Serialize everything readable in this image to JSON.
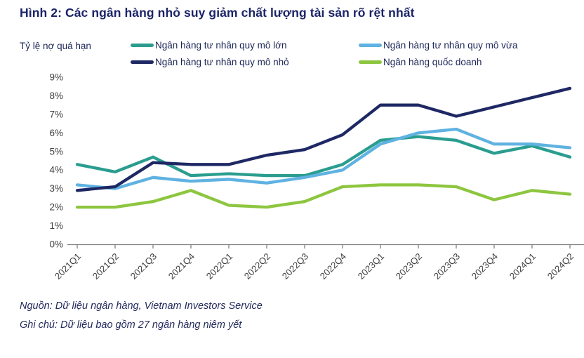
{
  "title": "Hình 2: Các ngân hàng nhỏ suy giảm chất lượng tài sản rõ rệt nhất",
  "y_axis_label": "Tỷ lệ nợ quá hạn",
  "footer": {
    "source": "Nguồn: Dữ liệu ngân hàng, Vietnam Investors Service",
    "note": "Ghi chú: Dữ liệu bao gồm 27 ngân hàng niêm yết"
  },
  "colors": {
    "title_navy": "#1B2468",
    "legend_text": "#1B2556",
    "axis_text": "#404040",
    "axis_line": "#808080"
  },
  "chart_data": {
    "type": "line",
    "categories": [
      "2021Q1",
      "2021Q2",
      "2021Q3",
      "2021Q4",
      "2022Q1",
      "2022Q2",
      "2022Q3",
      "2022Q4",
      "2023Q1",
      "2023Q2",
      "2023Q3",
      "2023Q4",
      "2024Q1",
      "2024Q2"
    ],
    "series": [
      {
        "name": "Ngân hàng tư nhân quy mô lớn",
        "color": "#2A9D8F",
        "values": [
          4.3,
          3.9,
          4.7,
          3.7,
          3.8,
          3.7,
          3.7,
          4.3,
          5.6,
          5.8,
          5.6,
          4.9,
          5.3,
          4.7
        ]
      },
      {
        "name": "Ngân hàng tư nhân quy mô vừa",
        "color": "#5FB2E1",
        "values": [
          3.2,
          3.0,
          3.6,
          3.4,
          3.5,
          3.3,
          3.6,
          4.0,
          5.4,
          6.0,
          6.2,
          5.4,
          5.4,
          5.2
        ]
      },
      {
        "name": "Ngân hàng tư nhân quy mô nhỏ",
        "color": "#1E2864",
        "values": [
          2.9,
          3.1,
          4.4,
          4.3,
          4.3,
          4.8,
          5.1,
          5.9,
          7.5,
          7.5,
          6.9,
          7.4,
          7.9,
          8.4
        ]
      },
      {
        "name": "Ngân hàng quốc doanh",
        "color": "#8DC63F",
        "values": [
          2.0,
          2.0,
          2.3,
          2.9,
          2.1,
          2.0,
          2.3,
          3.1,
          3.2,
          3.2,
          3.1,
          2.4,
          2.9,
          2.7
        ]
      }
    ],
    "ylim": [
      0,
      9
    ],
    "y_ticks": [
      "0%",
      "1%",
      "2%",
      "3%",
      "4%",
      "5%",
      "6%",
      "7%",
      "8%",
      "9%"
    ],
    "y_tick_format": "percent",
    "grid": false,
    "legend_position": "top"
  }
}
